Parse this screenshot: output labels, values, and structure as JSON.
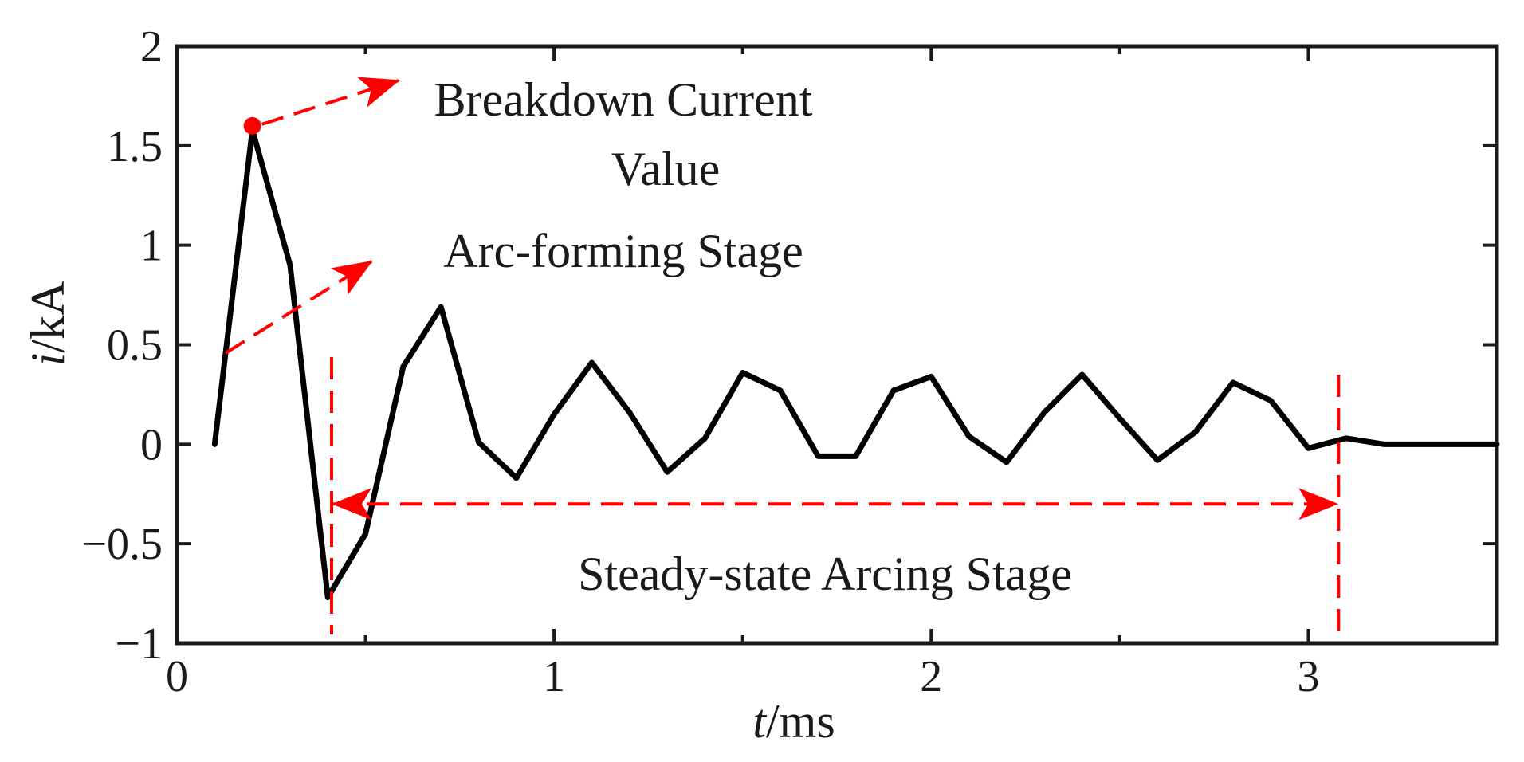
{
  "chart_data": {
    "type": "line",
    "xlabel": {
      "italic": "t",
      "rest": "/ms"
    },
    "ylabel": {
      "italic": "i",
      "rest": "/kA"
    },
    "xlim": [
      0,
      3.5
    ],
    "ylim": [
      -1,
      2
    ],
    "x_ticks": [
      0,
      1,
      2,
      3
    ],
    "x_tick_labels": [
      "0",
      "1",
      "2",
      "3"
    ],
    "y_ticks": [
      -1,
      -0.5,
      0,
      0.5,
      1,
      1.5,
      2
    ],
    "y_tick_labels": [
      "−1",
      "−0.5",
      "0",
      "0.5",
      "1",
      "1.5",
      "2"
    ],
    "grid": false,
    "series": [
      {
        "color": "#000000",
        "x": [
          0.1,
          0.2,
          0.3,
          0.4,
          0.5,
          0.6,
          0.7,
          0.8,
          0.9,
          1.0,
          1.1,
          1.2,
          1.3,
          1.4,
          1.5,
          1.6,
          1.7,
          1.8,
          1.9,
          2.0,
          2.1,
          2.2,
          2.3,
          2.4,
          2.5,
          2.6,
          2.7,
          2.8,
          2.9,
          3.0,
          3.1,
          3.2,
          3.5
        ],
        "y": [
          0,
          1.58,
          0.9,
          -0.77,
          -0.45,
          0.39,
          0.69,
          0.01,
          -0.17,
          0.15,
          0.41,
          0.16,
          -0.14,
          0.03,
          0.36,
          0.27,
          -0.06,
          -0.06,
          0.27,
          0.34,
          0.04,
          -0.09,
          0.16,
          0.35,
          0.13,
          -0.08,
          0.06,
          0.31,
          0.22,
          -0.02,
          0.03,
          0,
          0
        ]
      }
    ],
    "annotations": {
      "color": "#ff0000",
      "breakdown_label_line1": "Breakdown Current",
      "breakdown_label_line2": "Value",
      "breakdown_point": {
        "x": 0.2,
        "y": 1.6
      },
      "arc_forming_label": "Arc-forming Stage",
      "steady_label": "Steady-state Arcing Stage",
      "steady_start_x": 0.41,
      "steady_end_x": 3.08,
      "steady_arrow_y": -0.3
    }
  }
}
